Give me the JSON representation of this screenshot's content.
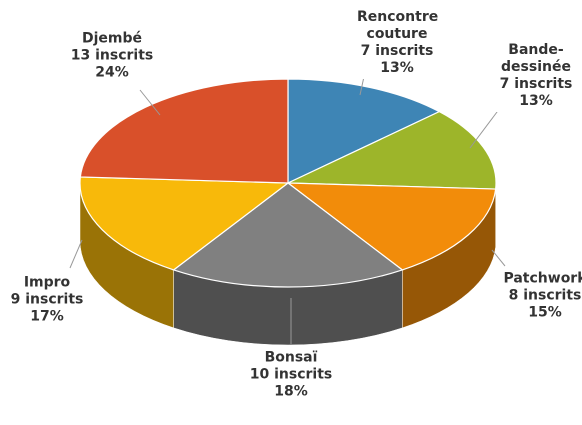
{
  "chart_data": {
    "type": "pie3d",
    "categories": [
      "Rencontre couture",
      "Bande-dessinée",
      "Patchwork",
      "Bonsaï",
      "Impro",
      "Djembé"
    ],
    "values": [
      7,
      7,
      8,
      10,
      9,
      13
    ],
    "value_labels": [
      "7 inscrits",
      "7 inscrits",
      "8 inscrits",
      "10 inscrits",
      "9 inscrits",
      "13 inscrits"
    ],
    "percent_labels": [
      "13%",
      "13%",
      "15%",
      "18%",
      "17%",
      "24%"
    ],
    "colors": [
      "#3e85b5",
      "#9db52a",
      "#f28c0a",
      "#808080",
      "#f8b90a",
      "#d9502a"
    ]
  }
}
